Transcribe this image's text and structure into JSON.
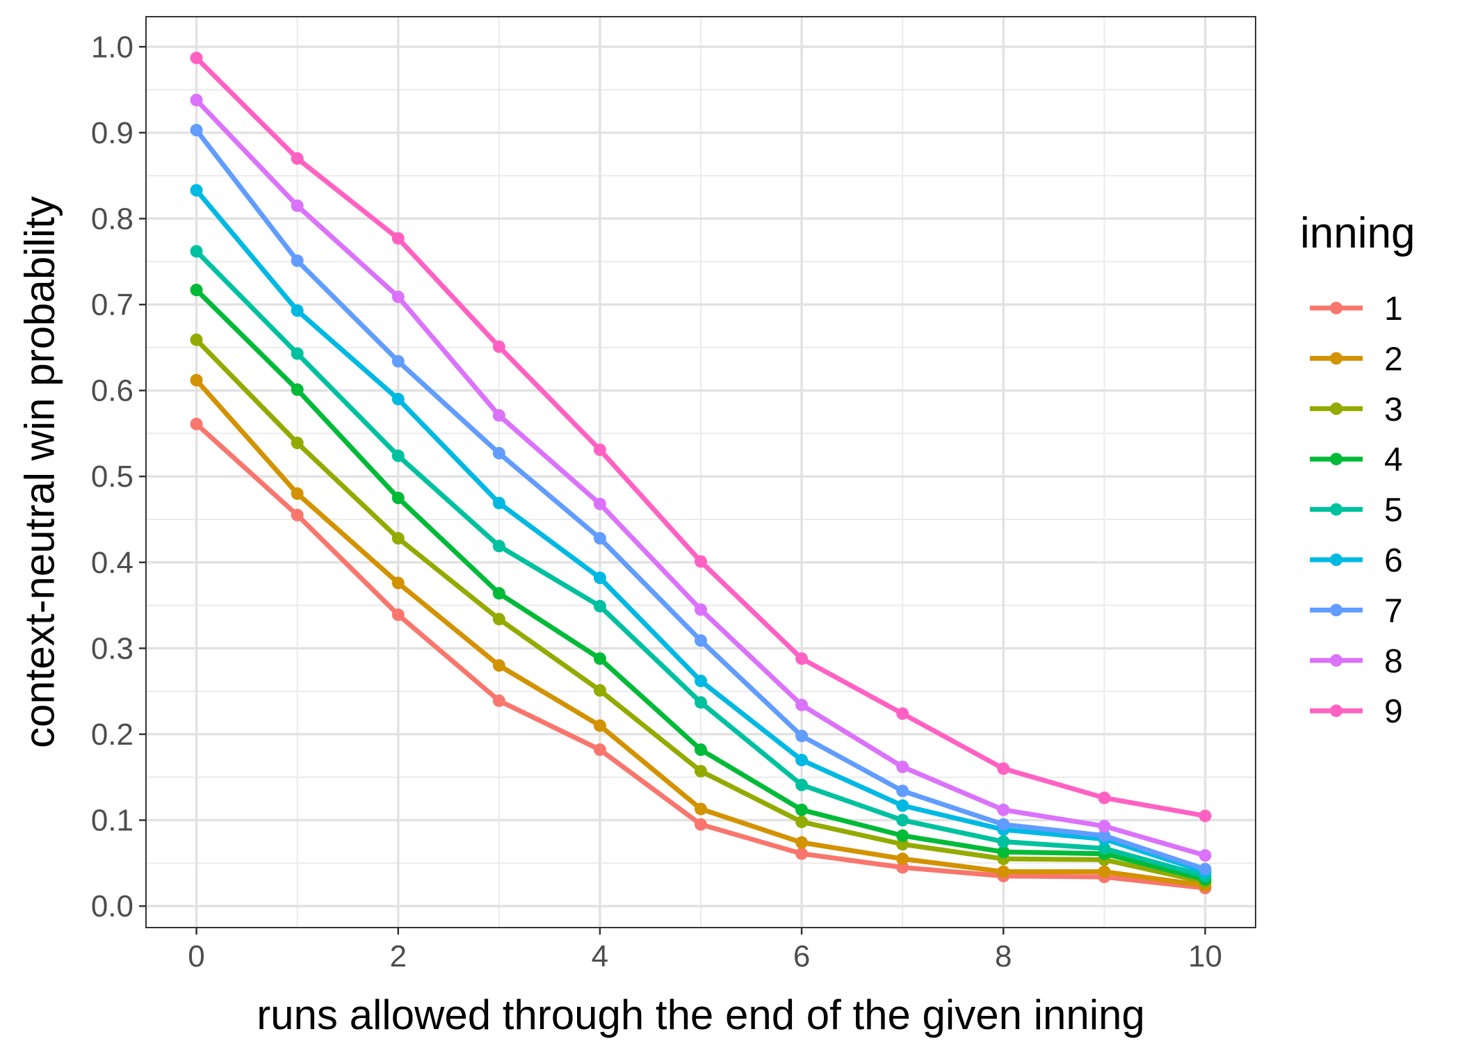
{
  "chart_data": {
    "type": "line",
    "xlabel": "runs allowed through the end of the given inning",
    "ylabel": "context-neutral win probability",
    "legend_title": "inning",
    "legend_position": "right",
    "grid": true,
    "xlim": [
      -0.5,
      10.5
    ],
    "ylim": [
      -0.025,
      1.035
    ],
    "x_ticks": [
      0,
      2,
      4,
      6,
      8,
      10
    ],
    "y_ticks": [
      0.0,
      0.1,
      0.2,
      0.3,
      0.4,
      0.5,
      0.6,
      0.7,
      0.8,
      0.9,
      1.0
    ],
    "x_tick_labels": [
      "0",
      "2",
      "4",
      "6",
      "8",
      "10"
    ],
    "y_tick_labels": [
      "0.0",
      "0.1",
      "0.2",
      "0.3",
      "0.4",
      "0.5",
      "0.6",
      "0.7",
      "0.8",
      "0.9",
      "1.0"
    ],
    "x": [
      0,
      1,
      2,
      3,
      4,
      5,
      6,
      7,
      8,
      9,
      10
    ],
    "series": [
      {
        "name": "1",
        "color": "#F8766D",
        "values": [
          0.561,
          0.455,
          0.339,
          0.239,
          0.182,
          0.095,
          0.061,
          0.045,
          0.035,
          0.034,
          0.021
        ]
      },
      {
        "name": "2",
        "color": "#D39200",
        "values": [
          0.612,
          0.48,
          0.376,
          0.28,
          0.21,
          0.113,
          0.074,
          0.055,
          0.04,
          0.04,
          0.024
        ]
      },
      {
        "name": "3",
        "color": "#93AA00",
        "values": [
          0.659,
          0.539,
          0.428,
          0.334,
          0.251,
          0.157,
          0.098,
          0.072,
          0.055,
          0.054,
          0.028
        ]
      },
      {
        "name": "4",
        "color": "#00BA38",
        "values": [
          0.717,
          0.601,
          0.475,
          0.364,
          0.288,
          0.182,
          0.112,
          0.082,
          0.063,
          0.061,
          0.031
        ]
      },
      {
        "name": "5",
        "color": "#00C19F",
        "values": [
          0.762,
          0.643,
          0.524,
          0.419,
          0.349,
          0.237,
          0.141,
          0.1,
          0.075,
          0.067,
          0.035
        ]
      },
      {
        "name": "6",
        "color": "#00B9E3",
        "values": [
          0.833,
          0.693,
          0.59,
          0.469,
          0.382,
          0.262,
          0.17,
          0.117,
          0.089,
          0.078,
          0.04
        ]
      },
      {
        "name": "7",
        "color": "#619CFF",
        "values": [
          0.903,
          0.751,
          0.634,
          0.527,
          0.428,
          0.309,
          0.198,
          0.134,
          0.095,
          0.082,
          0.043
        ]
      },
      {
        "name": "8",
        "color": "#DB72FB",
        "values": [
          0.938,
          0.815,
          0.709,
          0.571,
          0.468,
          0.345,
          0.234,
          0.162,
          0.112,
          0.093,
          0.059
        ]
      },
      {
        "name": "9",
        "color": "#FF61C3",
        "values": [
          0.987,
          0.87,
          0.777,
          0.651,
          0.531,
          0.401,
          0.288,
          0.224,
          0.16,
          0.126,
          0.105
        ]
      }
    ]
  }
}
